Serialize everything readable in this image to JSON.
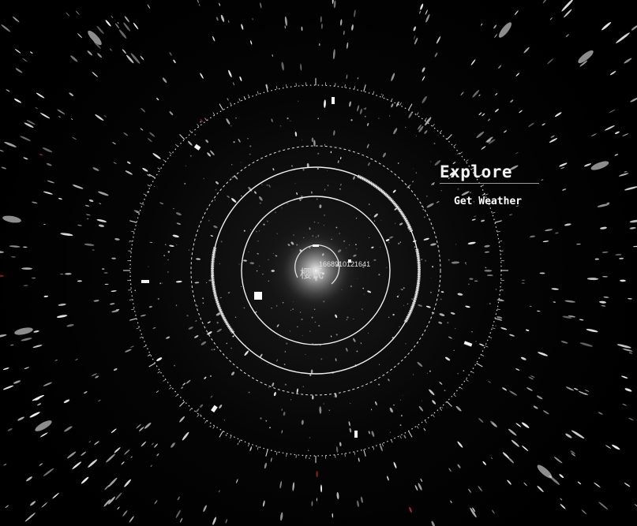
{
  "menu": {
    "title": "Explore",
    "items": [
      {
        "label": "Get Weather"
      }
    ]
  },
  "core": {
    "label": "樱氏",
    "number": "1668910121641"
  },
  "colors": {
    "background": "#000000",
    "ring": "#e8e8e8",
    "star": "#ffffff",
    "accent_star": "#c0392b"
  }
}
